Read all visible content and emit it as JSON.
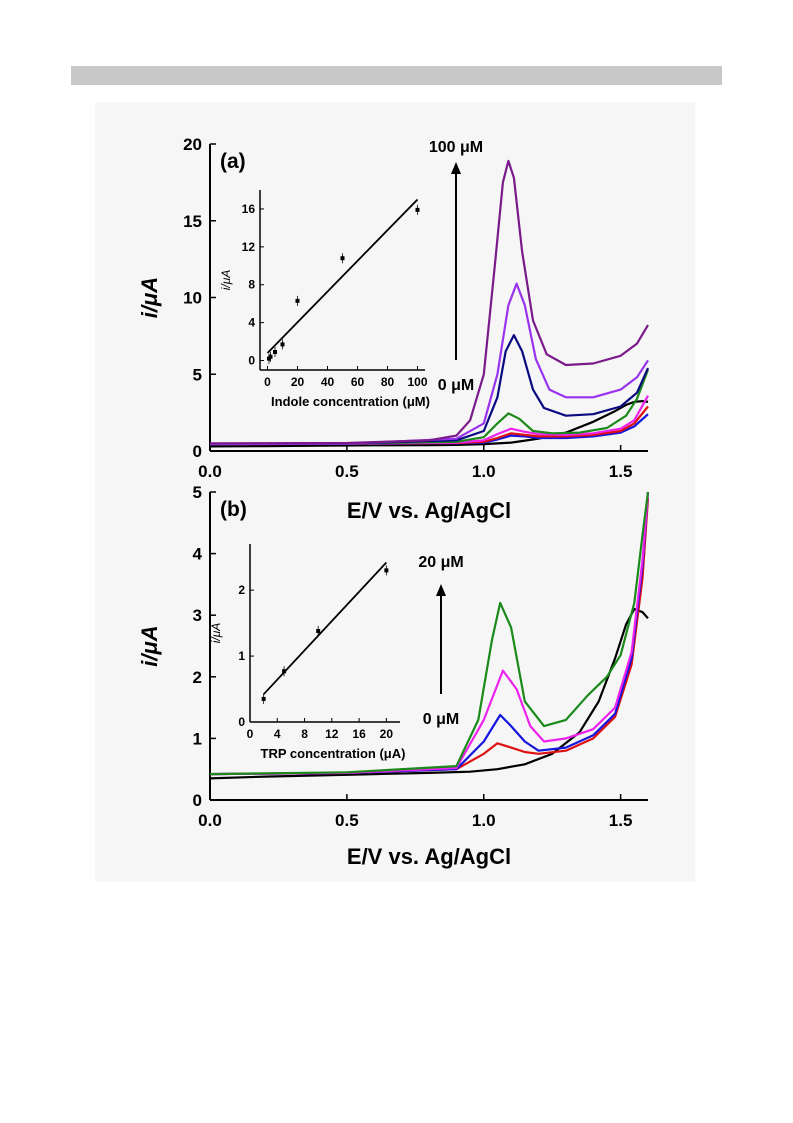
{
  "chart_data": [
    {
      "panel": "a",
      "type": "line",
      "panel_label": "(a)",
      "xlabel": "E/V vs. Ag/AgCl",
      "ylabel": "i/μA",
      "xlim": [
        0.0,
        1.6
      ],
      "ylim": [
        0,
        20
      ],
      "xticks": [
        "0.0",
        "0.5",
        "1.0",
        "1.5"
      ],
      "yticks": [
        "0",
        "5",
        "10",
        "15",
        "20"
      ],
      "arrow_top_label": "100 μM",
      "arrow_bottom_label": "0 μM",
      "series": [
        {
          "color": "#000000",
          "points": [
            [
              0,
              0.3
            ],
            [
              0.2,
              0.32
            ],
            [
              0.4,
              0.35
            ],
            [
              0.6,
              0.37
            ],
            [
              0.8,
              0.38
            ],
            [
              0.9,
              0.4
            ],
            [
              1.0,
              0.45
            ],
            [
              1.1,
              0.55
            ],
            [
              1.2,
              0.8
            ],
            [
              1.3,
              1.2
            ],
            [
              1.4,
              1.9
            ],
            [
              1.48,
              2.6
            ],
            [
              1.52,
              3.0
            ],
            [
              1.55,
              3.2
            ],
            [
              1.58,
              3.25
            ],
            [
              1.6,
              3.2
            ]
          ]
        },
        {
          "color": "#1515dd",
          "points": [
            [
              0,
              0.45
            ],
            [
              0.5,
              0.47
            ],
            [
              0.9,
              0.5
            ],
            [
              1.0,
              0.55
            ],
            [
              1.05,
              0.75
            ],
            [
              1.1,
              1.0
            ],
            [
              1.15,
              0.95
            ],
            [
              1.2,
              0.85
            ],
            [
              1.3,
              0.85
            ],
            [
              1.4,
              0.95
            ],
            [
              1.5,
              1.2
            ],
            [
              1.55,
              1.6
            ],
            [
              1.6,
              2.4
            ]
          ]
        },
        {
          "color": "#dd1111",
          "points": [
            [
              0,
              0.45
            ],
            [
              0.5,
              0.47
            ],
            [
              0.9,
              0.52
            ],
            [
              1.0,
              0.6
            ],
            [
              1.05,
              0.85
            ],
            [
              1.1,
              1.15
            ],
            [
              1.15,
              1.05
            ],
            [
              1.2,
              0.95
            ],
            [
              1.3,
              0.95
            ],
            [
              1.4,
              1.05
            ],
            [
              1.5,
              1.3
            ],
            [
              1.55,
              1.8
            ],
            [
              1.6,
              2.9
            ]
          ]
        },
        {
          "color": "#ee22ee",
          "points": [
            [
              0,
              0.45
            ],
            [
              0.5,
              0.47
            ],
            [
              0.9,
              0.55
            ],
            [
              1.0,
              0.7
            ],
            [
              1.05,
              1.1
            ],
            [
              1.1,
              1.45
            ],
            [
              1.15,
              1.25
            ],
            [
              1.2,
              1.1
            ],
            [
              1.3,
              1.05
            ],
            [
              1.4,
              1.15
            ],
            [
              1.5,
              1.45
            ],
            [
              1.55,
              2.0
            ],
            [
              1.6,
              3.6
            ]
          ]
        },
        {
          "color": "#1a8a1a",
          "points": [
            [
              0,
              0.45
            ],
            [
              0.5,
              0.48
            ],
            [
              0.9,
              0.6
            ],
            [
              1.0,
              0.9
            ],
            [
              1.05,
              1.8
            ],
            [
              1.09,
              2.45
            ],
            [
              1.13,
              2.1
            ],
            [
              1.18,
              1.3
            ],
            [
              1.25,
              1.15
            ],
            [
              1.35,
              1.2
            ],
            [
              1.45,
              1.5
            ],
            [
              1.52,
              2.3
            ],
            [
              1.56,
              3.4
            ],
            [
              1.6,
              5.3
            ]
          ]
        },
        {
          "color": "#0a0a80",
          "points": [
            [
              0,
              0.45
            ],
            [
              0.5,
              0.48
            ],
            [
              0.9,
              0.7
            ],
            [
              1.0,
              1.3
            ],
            [
              1.05,
              3.5
            ],
            [
              1.08,
              6.5
            ],
            [
              1.11,
              7.55
            ],
            [
              1.14,
              6.5
            ],
            [
              1.18,
              4.0
            ],
            [
              1.22,
              2.8
            ],
            [
              1.3,
              2.3
            ],
            [
              1.4,
              2.4
            ],
            [
              1.5,
              2.9
            ],
            [
              1.56,
              3.8
            ],
            [
              1.6,
              5.4
            ]
          ]
        },
        {
          "color": "#9933ee",
          "points": [
            [
              0,
              0.45
            ],
            [
              0.5,
              0.48
            ],
            [
              0.9,
              0.8
            ],
            [
              1.0,
              1.8
            ],
            [
              1.05,
              5.0
            ],
            [
              1.09,
              9.5
            ],
            [
              1.12,
              10.9
            ],
            [
              1.15,
              9.5
            ],
            [
              1.19,
              6.0
            ],
            [
              1.24,
              4.0
            ],
            [
              1.3,
              3.5
            ],
            [
              1.4,
              3.5
            ],
            [
              1.5,
              4.0
            ],
            [
              1.56,
              4.8
            ],
            [
              1.6,
              5.9
            ]
          ]
        },
        {
          "color": "#7a1a8a",
          "points": [
            [
              0,
              0.5
            ],
            [
              0.5,
              0.52
            ],
            [
              0.8,
              0.7
            ],
            [
              0.9,
              1.0
            ],
            [
              0.95,
              2.0
            ],
            [
              1.0,
              5.0
            ],
            [
              1.04,
              12.0
            ],
            [
              1.07,
              17.5
            ],
            [
              1.09,
              18.9
            ],
            [
              1.11,
              17.8
            ],
            [
              1.14,
              13.0
            ],
            [
              1.18,
              8.5
            ],
            [
              1.23,
              6.3
            ],
            [
              1.3,
              5.6
            ],
            [
              1.4,
              5.7
            ],
            [
              1.5,
              6.2
            ],
            [
              1.56,
              7.0
            ],
            [
              1.6,
              8.2
            ]
          ]
        }
      ],
      "inset": {
        "type": "scatter",
        "xlabel": "Indole concentration (μM)",
        "ylabel": "i/μA",
        "xlim": [
          -5,
          105
        ],
        "ylim": [
          -1,
          18
        ],
        "xticks": [
          "0",
          "20",
          "40",
          "60",
          "80",
          "100"
        ],
        "yticks": [
          "0",
          "4",
          "8",
          "12",
          "16"
        ],
        "points": [
          [
            1,
            0.2
          ],
          [
            2,
            0.4
          ],
          [
            5,
            0.9
          ],
          [
            10,
            1.7
          ],
          [
            20,
            6.3
          ],
          [
            50,
            10.8
          ],
          [
            100,
            15.9
          ]
        ],
        "fit_line": [
          [
            0,
            0.8
          ],
          [
            100,
            17.0
          ]
        ]
      }
    },
    {
      "panel": "b",
      "type": "line",
      "panel_label": "(b)",
      "xlabel": "E/V vs. Ag/AgCl",
      "ylabel": "i/μA",
      "xlim": [
        0.0,
        1.6
      ],
      "ylim": [
        0,
        5
      ],
      "xticks": [
        "0.0",
        "0.5",
        "1.0",
        "1.5"
      ],
      "yticks": [
        "0",
        "1",
        "2",
        "3",
        "4",
        "5"
      ],
      "arrow_top_label": "20 μM",
      "arrow_bottom_label": "0 μM",
      "series": [
        {
          "color": "#000000",
          "points": [
            [
              0,
              0.35
            ],
            [
              0.2,
              0.38
            ],
            [
              0.4,
              0.4
            ],
            [
              0.6,
              0.42
            ],
            [
              0.8,
              0.44
            ],
            [
              0.95,
              0.46
            ],
            [
              1.05,
              0.5
            ],
            [
              1.15,
              0.58
            ],
            [
              1.25,
              0.75
            ],
            [
              1.35,
              1.1
            ],
            [
              1.42,
              1.6
            ],
            [
              1.48,
              2.3
            ],
            [
              1.52,
              2.85
            ],
            [
              1.55,
              3.1
            ],
            [
              1.58,
              3.05
            ],
            [
              1.6,
              2.95
            ]
          ]
        },
        {
          "color": "#dd1111",
          "points": [
            [
              0,
              0.42
            ],
            [
              0.5,
              0.44
            ],
            [
              0.9,
              0.5
            ],
            [
              1.0,
              0.75
            ],
            [
              1.05,
              0.92
            ],
            [
              1.1,
              0.85
            ],
            [
              1.15,
              0.78
            ],
            [
              1.2,
              0.75
            ],
            [
              1.3,
              0.8
            ],
            [
              1.4,
              1.0
            ],
            [
              1.48,
              1.35
            ],
            [
              1.54,
              2.2
            ],
            [
              1.58,
              3.6
            ],
            [
              1.6,
              4.9
            ]
          ]
        },
        {
          "color": "#1515dd",
          "points": [
            [
              0,
              0.42
            ],
            [
              0.5,
              0.44
            ],
            [
              0.9,
              0.5
            ],
            [
              1.0,
              0.95
            ],
            [
              1.06,
              1.38
            ],
            [
              1.1,
              1.2
            ],
            [
              1.15,
              0.95
            ],
            [
              1.2,
              0.8
            ],
            [
              1.3,
              0.85
            ],
            [
              1.4,
              1.05
            ],
            [
              1.48,
              1.4
            ],
            [
              1.54,
              2.3
            ],
            [
              1.58,
              3.8
            ],
            [
              1.6,
              5.0
            ]
          ]
        },
        {
          "color": "#ee22ee",
          "points": [
            [
              0,
              0.42
            ],
            [
              0.5,
              0.44
            ],
            [
              0.9,
              0.52
            ],
            [
              1.0,
              1.3
            ],
            [
              1.07,
              2.1
            ],
            [
              1.12,
              1.8
            ],
            [
              1.17,
              1.2
            ],
            [
              1.22,
              0.95
            ],
            [
              1.3,
              1.0
            ],
            [
              1.4,
              1.15
            ],
            [
              1.48,
              1.5
            ],
            [
              1.54,
              2.4
            ],
            [
              1.58,
              3.9
            ],
            [
              1.6,
              5.0
            ]
          ]
        },
        {
          "color": "#1a8a1a",
          "points": [
            [
              0,
              0.42
            ],
            [
              0.5,
              0.45
            ],
            [
              0.9,
              0.55
            ],
            [
              0.98,
              1.3
            ],
            [
              1.03,
              2.6
            ],
            [
              1.06,
              3.2
            ],
            [
              1.1,
              2.8
            ],
            [
              1.15,
              1.6
            ],
            [
              1.22,
              1.2
            ],
            [
              1.3,
              1.3
            ],
            [
              1.38,
              1.7
            ],
            [
              1.45,
              2.0
            ],
            [
              1.5,
              2.35
            ],
            [
              1.55,
              3.2
            ],
            [
              1.58,
              4.3
            ],
            [
              1.6,
              5.0
            ]
          ]
        }
      ],
      "inset": {
        "type": "scatter",
        "xlabel": "TRP concentration (μA)",
        "ylabel": "i/μA",
        "xlim": [
          0,
          22
        ],
        "ylim": [
          0,
          2.7
        ],
        "xticks": [
          "0",
          "4",
          "8",
          "12",
          "16",
          "20"
        ],
        "yticks": [
          "0",
          "1",
          "2"
        ],
        "points": [
          [
            2,
            0.35
          ],
          [
            5,
            0.77
          ],
          [
            10,
            1.38
          ],
          [
            20,
            2.3
          ]
        ],
        "fit_line": [
          [
            2,
            0.42
          ],
          [
            20,
            2.42
          ]
        ]
      }
    }
  ]
}
